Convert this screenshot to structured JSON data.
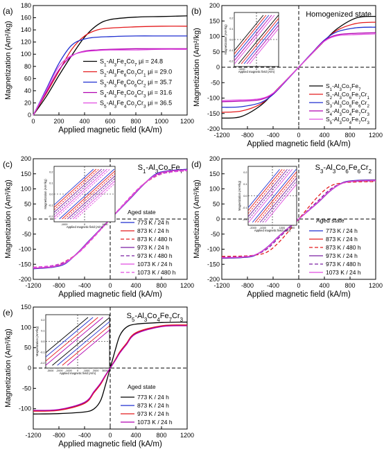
{
  "chart_data": [
    {
      "type": "line",
      "panel_label": "(a)",
      "xlabel": "Applied magnetic field (kA/m)",
      "ylabel": "Magnetization (Am²/kg)",
      "xlim": [
        0,
        1200
      ],
      "ylim": [
        0,
        180
      ],
      "xticks": [
        "0",
        "200",
        "400",
        "600",
        "800",
        "1000",
        "1200"
      ],
      "yticks": [
        "0",
        "20",
        "40",
        "60",
        "80",
        "100",
        "120",
        "140",
        "160",
        "180"
      ],
      "legend_position": "lower-right",
      "series": [
        {
          "name": "S1-Al3Fe7Co7 μi = 24.8",
          "color": "#000000",
          "dash": "",
          "x": [
            0,
            100,
            200,
            300,
            400,
            500,
            600,
            800,
            1000,
            1200
          ],
          "y": [
            0,
            30,
            65,
            98,
            128,
            148,
            157,
            161,
            162,
            163
          ]
        },
        {
          "name": "S2-Al3Fe6Co7Cr1 μi = 29.0",
          "color": "#e41a1c",
          "dash": "",
          "x": [
            0,
            100,
            200,
            300,
            400,
            500,
            600,
            800,
            1000,
            1200
          ],
          "y": [
            0,
            35,
            72,
            108,
            130,
            140,
            143,
            145,
            146,
            146
          ]
        },
        {
          "name": "S3-Al3Fe6Co6Cr2 μi = 35.7",
          "color": "#1f2fd0",
          "dash": "",
          "x": [
            0,
            100,
            200,
            300,
            400,
            500,
            600,
            800,
            1000,
            1200
          ],
          "y": [
            0,
            42,
            85,
            115,
            125,
            128,
            129,
            130,
            130,
            130
          ]
        },
        {
          "name": "S4-Al3Fe7Co4Cr3 μi = 31.6",
          "color": "#b000b0",
          "dash": "",
          "x": [
            0,
            100,
            200,
            300,
            400,
            500,
            600,
            800,
            1000,
            1200
          ],
          "y": [
            0,
            37,
            74,
            97,
            105,
            107,
            108,
            109,
            109,
            109
          ]
        },
        {
          "name": "S5-Al3Fe4Co7Cr3 μi = 36.5",
          "color": "#e04ae0",
          "dash": "",
          "x": [
            0,
            100,
            200,
            300,
            400,
            500,
            600,
            800,
            1000,
            1200
          ],
          "y": [
            0,
            40,
            80,
            98,
            104,
            106,
            107,
            107,
            108,
            108
          ]
        }
      ]
    },
    {
      "type": "line",
      "panel_label": "(b)",
      "title": "Homogenized state",
      "xlabel": "Applied magnetic field (kA/m)",
      "ylabel": "Magnetization (Am²/kg)",
      "xlim": [
        -1200,
        1200
      ],
      "ylim": [
        -200,
        200
      ],
      "xticks": [
        "-1200",
        "-800",
        "-400",
        "0",
        "400",
        "800",
        "1200"
      ],
      "yticks": [
        "-200",
        "-150",
        "-100",
        "-50",
        "0",
        "50",
        "100",
        "150",
        "200"
      ],
      "legend_position": "lower-right",
      "inset": {
        "xlabel": "Applied magnetic field (A/m)",
        "ylabel": "Magnetization (Am²/kg)",
        "xticks": [
          "-1000",
          "0",
          "1000"
        ],
        "yticks": [
          "-0.2",
          "-0.1",
          "0.0",
          "0.1",
          "0.2"
        ]
      },
      "series": [
        {
          "name": "S1-Al3Co7Fe7",
          "color": "#000000",
          "dash": "",
          "x": [
            -1200,
            -900,
            -600,
            -400,
            -200,
            0,
            200,
            400,
            600,
            900,
            1200
          ],
          "y": [
            -165,
            -160,
            -125,
            -85,
            -43,
            0,
            43,
            85,
            125,
            160,
            165
          ]
        },
        {
          "name": "S2-Al3Co6Fe7Cr1",
          "color": "#e41a1c",
          "dash": "",
          "x": [
            -1200,
            -900,
            -600,
            -400,
            -200,
            0,
            200,
            400,
            600,
            900,
            1200
          ],
          "y": [
            -146,
            -142,
            -120,
            -85,
            -43,
            0,
            43,
            85,
            120,
            142,
            146
          ]
        },
        {
          "name": "S3-Al3Co6Fe6Cr2",
          "color": "#1f2fd0",
          "dash": "",
          "x": [
            -1200,
            -900,
            -600,
            -400,
            -200,
            0,
            200,
            400,
            600,
            900,
            1200
          ],
          "y": [
            -130,
            -128,
            -115,
            -88,
            -45,
            0,
            45,
            88,
            115,
            128,
            130
          ]
        },
        {
          "name": "S4-Al3Co4Fe7Cr3",
          "color": "#b000b0",
          "dash": "",
          "x": [
            -1200,
            -900,
            -600,
            -400,
            -200,
            0,
            200,
            400,
            600,
            900,
            1200
          ],
          "y": [
            -112,
            -110,
            -105,
            -86,
            -44,
            0,
            44,
            86,
            105,
            110,
            112
          ]
        },
        {
          "name": "S5-Al3Co4Fe7Cr3",
          "color": "#e04ae0",
          "dash": "",
          "x": [
            -1200,
            -900,
            -600,
            -400,
            -200,
            0,
            200,
            400,
            600,
            900,
            1200
          ],
          "y": [
            -108,
            -106,
            -102,
            -84,
            -43,
            0,
            43,
            84,
            102,
            106,
            108
          ]
        }
      ]
    },
    {
      "type": "line",
      "panel_label": "(c)",
      "title": "S1-Al3Co7Fe7",
      "legend_title": "Aged state",
      "xlabel": "Applied magnetic field (kA/m)",
      "ylabel": "Magnetization (Am²/kg)",
      "xlim": [
        -1200,
        1200
      ],
      "ylim": [
        -200,
        200
      ],
      "xticks": [
        "-1200",
        "-800",
        "-400",
        "0",
        "400",
        "800",
        "1200"
      ],
      "yticks": [
        "-200",
        "-150",
        "-100",
        "-50",
        "0",
        "50",
        "100",
        "150",
        "200"
      ],
      "legend_position": "lower-right",
      "inset": {
        "xlabel": "Applied magnetic field (A/m)",
        "ylabel": "Magnetization (Am²/kg)",
        "xticks": [
          "-1000",
          "0",
          "1000"
        ],
        "yticks": [
          "-0.2",
          "-0.1",
          "0.0",
          "0.1",
          "0.2"
        ]
      },
      "series": [
        {
          "name": "773 K / 24 h",
          "color": "#1f2fd0",
          "dash": "",
          "x": [
            -1200,
            -900,
            -700,
            -500,
            -300,
            0,
            300,
            500,
            700,
            900,
            1200
          ],
          "y": [
            -165,
            -160,
            -148,
            -110,
            -65,
            0,
            65,
            110,
            148,
            160,
            165
          ]
        },
        {
          "name": "873 K / 24 h",
          "color": "#e41a1c",
          "dash": "",
          "x": [
            -1200,
            -900,
            -700,
            -500,
            -300,
            0,
            300,
            500,
            700,
            900,
            1200
          ],
          "y": [
            -163,
            -158,
            -145,
            -112,
            -68,
            0,
            68,
            112,
            145,
            158,
            163
          ]
        },
        {
          "name": "873 K / 480 h",
          "color": "#e41a1c",
          "dash": "5,3",
          "x": [
            -1200,
            -900,
            -700,
            -500,
            -300,
            0,
            300,
            500,
            700,
            900,
            1200
          ],
          "y": [
            -160,
            -155,
            -140,
            -112,
            -70,
            0,
            70,
            112,
            140,
            155,
            160
          ]
        },
        {
          "name": "973 K / 24 h",
          "color": "#7a1fa2",
          "dash": "",
          "x": [
            -1200,
            -900,
            -700,
            -500,
            -300,
            0,
            300,
            500,
            700,
            900,
            1200
          ],
          "y": [
            -164,
            -159,
            -146,
            -110,
            -66,
            0,
            66,
            110,
            146,
            159,
            164
          ]
        },
        {
          "name": "973 K / 480 h",
          "color": "#7a1fa2",
          "dash": "5,3",
          "x": [
            -1200,
            -900,
            -700,
            -500,
            -300,
            0,
            300,
            500,
            700,
            900,
            1200
          ],
          "y": [
            -161,
            -156,
            -143,
            -112,
            -69,
            0,
            69,
            112,
            143,
            156,
            161
          ]
        },
        {
          "name": "1073 K / 24 h",
          "color": "#e04ae0",
          "dash": "",
          "x": [
            -1200,
            -900,
            -700,
            -500,
            -300,
            0,
            300,
            500,
            700,
            900,
            1200
          ],
          "y": [
            -163,
            -158,
            -146,
            -111,
            -67,
            0,
            67,
            111,
            146,
            158,
            163
          ]
        },
        {
          "name": "1073 K / 480 h",
          "color": "#e04ae0",
          "dash": "5,3",
          "x": [
            -1200,
            -900,
            -700,
            -500,
            -300,
            0,
            300,
            500,
            700,
            900,
            1200
          ],
          "y": [
            -160,
            -154,
            -141,
            -113,
            -71,
            0,
            71,
            113,
            141,
            154,
            160
          ]
        }
      ]
    },
    {
      "type": "line",
      "panel_label": "(d)",
      "title": "S3-Al3Co6Fe6Cr2",
      "legend_title": "Aged state",
      "xlabel": "Applied magnetic field (kA/m)",
      "ylabel": "Magnetization (Am²/kg)",
      "xlim": [
        -1200,
        1200
      ],
      "ylim": [
        -200,
        200
      ],
      "xticks": [
        "-1200",
        "-800",
        "-400",
        "0",
        "400",
        "800",
        "1200"
      ],
      "yticks": [
        "-200",
        "-150",
        "-100",
        "-50",
        "0",
        "50",
        "100",
        "150",
        "200"
      ],
      "legend_position": "lower-right",
      "inset": {
        "xlabel": "Applied magnetic field (A/m)",
        "ylabel": "Magnetization (Am²/kg)",
        "xticks": [
          "-2000",
          "-1000",
          "0",
          "1000",
          "2000"
        ],
        "yticks": [
          "-0.2",
          "-0.1",
          "0.0",
          "0.1",
          "0.2"
        ]
      },
      "series": [
        {
          "name": "773 K / 24 h",
          "color": "#1f2fd0",
          "dash": "",
          "x": [
            -1200,
            -900,
            -700,
            -500,
            -300,
            0,
            300,
            500,
            700,
            900,
            1200
          ],
          "y": [
            -130,
            -128,
            -122,
            -95,
            -55,
            0,
            55,
            95,
            122,
            128,
            130
          ]
        },
        {
          "name": "873 K / 24 h",
          "color": "#e41a1c",
          "dash": "",
          "x": [
            -1200,
            -900,
            -700,
            -500,
            -300,
            0,
            300,
            500,
            700,
            900,
            1200
          ],
          "y": [
            -129,
            -127,
            -121,
            -96,
            -56,
            0,
            56,
            96,
            121,
            127,
            129
          ]
        },
        {
          "name": "873 K / 480 h",
          "color": "#e41a1c",
          "dash": "5,3",
          "x": [
            -1200,
            -900,
            -700,
            -500,
            -300,
            0,
            300,
            500,
            700,
            900,
            1200
          ],
          "y": [
            -124,
            -123,
            -120,
            -110,
            -75,
            0,
            75,
            110,
            120,
            123,
            124
          ]
        },
        {
          "name": "973 K / 24 h",
          "color": "#7a1fa2",
          "dash": "",
          "x": [
            -1200,
            -900,
            -700,
            -500,
            -300,
            0,
            300,
            500,
            700,
            900,
            1200
          ],
          "y": [
            -129,
            -127,
            -121,
            -95,
            -55,
            0,
            55,
            95,
            121,
            127,
            129
          ]
        },
        {
          "name": "973 K / 480 h",
          "color": "#7a1fa2",
          "dash": "5,3",
          "x": [
            -1200,
            -900,
            -700,
            -500,
            -300,
            0,
            300,
            500,
            700,
            900,
            1200
          ],
          "y": [
            -127,
            -125,
            -120,
            -100,
            -60,
            0,
            60,
            100,
            120,
            125,
            127
          ]
        },
        {
          "name": "1073 K / 24 h",
          "color": "#e04ae0",
          "dash": "",
          "x": [
            -1200,
            -900,
            -700,
            -500,
            -300,
            0,
            300,
            500,
            700,
            900,
            1200
          ],
          "y": [
            -128,
            -126,
            -120,
            -96,
            -56,
            0,
            56,
            96,
            120,
            126,
            128
          ]
        }
      ]
    },
    {
      "type": "line",
      "panel_label": "(e)",
      "title": "S5-Al3Co4Fe7Cr3",
      "legend_title": "Aged state",
      "xlabel": "Applied magnetic field (kA/m)",
      "ylabel": "Magnetization (Am²/kg)",
      "xlim": [
        -1200,
        1200
      ],
      "ylim": [
        -150,
        150
      ],
      "xticks": [
        "-1200",
        "-800",
        "-400",
        "0",
        "400",
        "800",
        "1200"
      ],
      "yticks": [
        "-100",
        "-50",
        "0",
        "50",
        "100",
        "150"
      ],
      "legend_position": "lower-right",
      "inset": {
        "xlabel": "Applied magnetic field (A/m)",
        "ylabel": "Magnetization (Am²/kg)",
        "xticks": [
          "-3000",
          "-2000",
          "-1000",
          "0",
          "1000",
          "2000",
          "3000"
        ],
        "yticks": [
          "-0.2",
          "-0.1",
          "0.0",
          "0.1",
          "0.2"
        ]
      },
      "series": [
        {
          "name": "773 K / 24 h",
          "color": "#000000",
          "dash": "",
          "x": [
            -1200,
            -800,
            -400,
            -250,
            -150,
            -80,
            0,
            80,
            150,
            250,
            400,
            800,
            1200
          ],
          "y": [
            -113,
            -112,
            -108,
            -100,
            -80,
            -45,
            0,
            45,
            80,
            100,
            108,
            112,
            113
          ]
        },
        {
          "name": "873 K / 24 h",
          "color": "#1f2fd0",
          "dash": "",
          "x": [
            -1200,
            -800,
            -400,
            -250,
            -150,
            -80,
            0,
            80,
            150,
            250,
            400,
            800,
            1200
          ],
          "y": [
            -105,
            -103,
            -85,
            -58,
            -38,
            -20,
            0,
            20,
            38,
            58,
            85,
            103,
            105
          ]
        },
        {
          "name": "973 K / 24 h",
          "color": "#e41a1c",
          "dash": "",
          "x": [
            -1200,
            -800,
            -400,
            -250,
            -150,
            -80,
            0,
            80,
            150,
            250,
            400,
            800,
            1200
          ],
          "y": [
            -106,
            -104,
            -87,
            -60,
            -40,
            -21,
            0,
            21,
            40,
            60,
            87,
            104,
            106
          ]
        },
        {
          "name": "1073 K / 24 h",
          "color": "#b000b0",
          "dash": "",
          "x": [
            -1200,
            -800,
            -400,
            -250,
            -150,
            -80,
            0,
            80,
            150,
            250,
            400,
            800,
            1200
          ],
          "y": [
            -104,
            -102,
            -84,
            -57,
            -37,
            -19,
            0,
            19,
            37,
            57,
            84,
            102,
            104
          ]
        }
      ]
    }
  ]
}
